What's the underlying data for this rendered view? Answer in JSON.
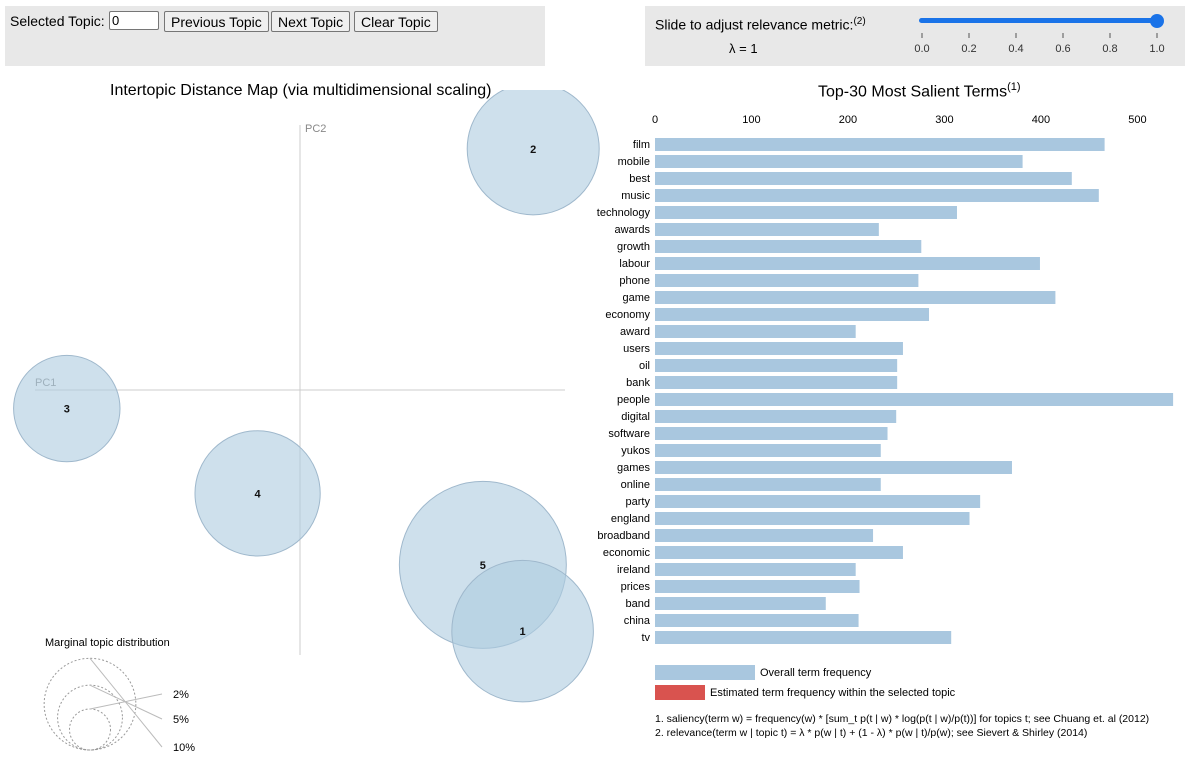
{
  "controls": {
    "selected_topic_label": "Selected Topic:",
    "selected_topic_value": "0",
    "prev_label": "Previous Topic",
    "next_label": "Next Topic",
    "clear_label": "Clear Topic",
    "slider_label": "Slide to adjust relevance metric:",
    "slider_footnote": "(2)",
    "lambda_text": "λ = 1",
    "slider_value": 1,
    "slider_ticks": [
      "0.0",
      "0.2",
      "0.4",
      "0.6",
      "0.8",
      "1.0"
    ]
  },
  "colors": {
    "bar": "#a9c7df",
    "topic_bar": "#d9534f",
    "circle_fill": "#aecbe0",
    "circle_stroke": "#9fb8cc",
    "slider": "#1a73e8"
  },
  "chart_data": [
    {
      "type": "scatter",
      "title": "Intertopic Distance Map (via multidimensional scaling)",
      "xlabel": "PC1",
      "ylabel": "PC2",
      "xlim": [
        -1,
        1
      ],
      "ylim": [
        -1,
        1
      ],
      "topics": [
        {
          "label": "1",
          "x": 0.84,
          "y": -0.91,
          "size": 4.6
        },
        {
          "label": "2",
          "x": 0.88,
          "y": 0.91,
          "size": 4.0
        },
        {
          "label": "3",
          "x": -0.88,
          "y": -0.07,
          "size": 2.6
        },
        {
          "label": "4",
          "x": -0.16,
          "y": -0.39,
          "size": 3.6
        },
        {
          "label": "5",
          "x": 0.69,
          "y": -0.66,
          "size": 6.4
        }
      ],
      "legend": {
        "title": "Marginal topic distribution",
        "entries": [
          "2%",
          "5%",
          "10%"
        ],
        "values": [
          2,
          5,
          10
        ]
      }
    },
    {
      "type": "bar",
      "orientation": "horizontal",
      "title": "Top-30 Most Salient Terms",
      "title_footnote": "(1)",
      "xlim": [
        0,
        540
      ],
      "xticks": [
        0,
        100,
        200,
        300,
        400,
        500
      ],
      "categories": [
        "film",
        "mobile",
        "best",
        "music",
        "technology",
        "awards",
        "growth",
        "labour",
        "phone",
        "game",
        "economy",
        "award",
        "users",
        "oil",
        "bank",
        "people",
        "digital",
        "software",
        "yukos",
        "games",
        "online",
        "party",
        "england",
        "broadband",
        "economic",
        "ireland",
        "prices",
        "band",
        "china",
        "tv"
      ],
      "series": [
        {
          "name": "Overall term frequency",
          "values": [
            466,
            381,
            432,
            460,
            313,
            232,
            276,
            399,
            273,
            415,
            284,
            208,
            257,
            251,
            251,
            537,
            250,
            241,
            234,
            370,
            234,
            337,
            326,
            226,
            257,
            208,
            212,
            177,
            211,
            307
          ]
        },
        {
          "name": "Estimated term frequency within the selected topic",
          "values": [
            0,
            0,
            0,
            0,
            0,
            0,
            0,
            0,
            0,
            0,
            0,
            0,
            0,
            0,
            0,
            0,
            0,
            0,
            0,
            0,
            0,
            0,
            0,
            0,
            0,
            0,
            0,
            0,
            0,
            0
          ]
        }
      ],
      "notes": [
        "1. saliency(term w) = frequency(w) * [sum_t p(t | w) * log(p(t | w)/p(t))] for topics t; see Chuang et. al (2012)",
        "2. relevance(term w | topic t) = λ * p(w | t) + (1 - λ) * p(w | t)/p(w); see Sievert & Shirley (2014)"
      ]
    }
  ]
}
